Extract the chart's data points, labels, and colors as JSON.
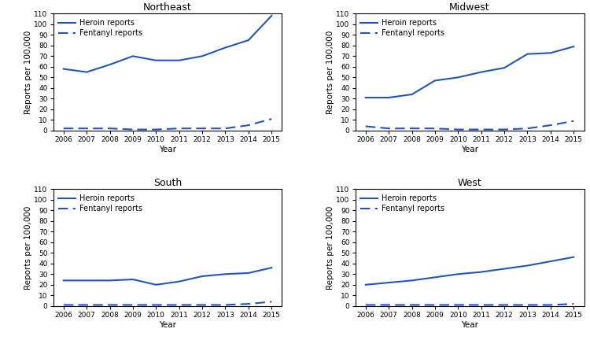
{
  "years": [
    2006,
    2007,
    2008,
    2009,
    2010,
    2011,
    2012,
    2013,
    2014,
    2015
  ],
  "regions": [
    "Northeast",
    "Midwest",
    "South",
    "West"
  ],
  "heroin": {
    "Northeast": [
      58,
      55,
      62,
      70,
      66,
      66,
      70,
      78,
      85,
      108
    ],
    "Midwest": [
      31,
      31,
      34,
      47,
      50,
      55,
      59,
      72,
      73,
      79
    ],
    "South": [
      24,
      24,
      24,
      25,
      20,
      23,
      28,
      30,
      31,
      36
    ],
    "West": [
      20,
      22,
      24,
      27,
      30,
      32,
      35,
      38,
      42,
      46
    ]
  },
  "fentanyl": {
    "Northeast": [
      2,
      2,
      2,
      1,
      1,
      2,
      2,
      2,
      5,
      11
    ],
    "Midwest": [
      4,
      2,
      2,
      2,
      1,
      1,
      1,
      2,
      5,
      9
    ],
    "South": [
      1,
      1,
      1,
      1,
      1,
      1,
      1,
      1,
      2,
      4
    ],
    "West": [
      1,
      1,
      1,
      1,
      1,
      1,
      1,
      1,
      1,
      2
    ]
  },
  "line_color": "#2255bb",
  "ylabel": "Reports per 100,000",
  "xlabel": "Year",
  "ylim": [
    0,
    110
  ],
  "yticks": [
    0,
    10,
    20,
    30,
    40,
    50,
    60,
    70,
    80,
    90,
    100,
    110
  ],
  "legend_heroin": "Heroin reports",
  "legend_fentanyl": "Fentanyl reports",
  "title_fontsize": 9,
  "axis_fontsize": 7.5,
  "tick_fontsize": 6.5,
  "legend_fontsize": 7
}
